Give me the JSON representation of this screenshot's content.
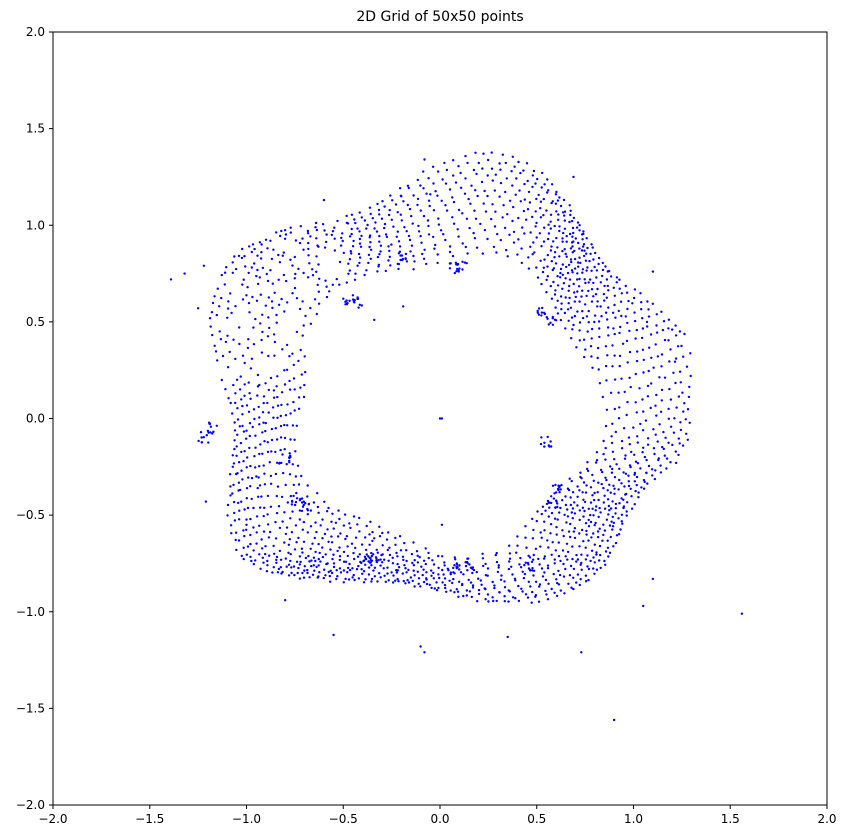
{
  "chart_data": {
    "type": "scatter",
    "title": "2D Grid of 50x50 points",
    "xlabel": "",
    "ylabel": "",
    "xlim": [
      -2.0,
      2.0
    ],
    "ylim": [
      -2.0,
      2.0
    ],
    "xticks": [
      -2.0,
      -1.5,
      -1.0,
      -0.5,
      0.0,
      0.5,
      1.0,
      1.5,
      2.0
    ],
    "yticks": [
      -2.0,
      -1.5,
      -1.0,
      -0.5,
      0.0,
      0.5,
      1.0,
      1.5,
      2.0
    ],
    "xtick_labels": [
      "−2.0",
      "−1.5",
      "−1.0",
      "−0.5",
      "0.0",
      "0.5",
      "1.0",
      "1.5",
      "2.0"
    ],
    "ytick_labels": [
      "−2.0",
      "−1.5",
      "−1.0",
      "−0.5",
      "0.0",
      "0.5",
      "1.0",
      "1.5",
      "2.0"
    ],
    "grid": false,
    "legend": "none",
    "marker_color": "#0000ff",
    "description_of_shape": "",
    "outliers": [
      [
        1.56,
        -1.01
      ],
      [
        0.9,
        -1.56
      ],
      [
        1.1,
        0.76
      ],
      [
        1.2,
        0.46
      ],
      [
        1.22,
        0.31
      ],
      [
        1.24,
        0.45
      ],
      [
        1.22,
        -0.23
      ],
      [
        1.07,
        0.5
      ],
      [
        1.1,
        -0.83
      ],
      [
        1.05,
        -0.97
      ],
      [
        -1.39,
        0.72
      ],
      [
        -1.32,
        0.75
      ],
      [
        -1.22,
        0.79
      ],
      [
        -1.25,
        0.57
      ],
      [
        -0.82,
        0.97
      ],
      [
        -0.6,
        1.13
      ],
      [
        -0.2,
        1.15
      ],
      [
        -0.08,
        1.34
      ],
      [
        -0.05,
        1.16
      ],
      [
        0.69,
        1.25
      ],
      [
        -1.21,
        -0.43
      ],
      [
        -1.0,
        -0.55
      ],
      [
        -0.98,
        -0.65
      ],
      [
        -0.8,
        -0.94
      ],
      [
        -0.55,
        -1.12
      ],
      [
        -0.1,
        -1.18
      ],
      [
        -0.08,
        -1.21
      ],
      [
        0.35,
        -1.13
      ],
      [
        0.73,
        -1.21
      ],
      [
        0.01,
        -0.55
      ],
      [
        -0.34,
        -0.62
      ],
      [
        0.0,
        0.0
      ],
      [
        0.01,
        0.0
      ],
      [
        -0.19,
        0.58
      ],
      [
        -0.34,
        0.51
      ]
    ],
    "clusters": [
      [
        -0.47,
        0.62
      ],
      [
        -0.42,
        0.6
      ],
      [
        -0.19,
        0.83
      ],
      [
        0.07,
        0.78
      ],
      [
        0.11,
        0.8
      ],
      [
        0.53,
        0.55
      ],
      [
        0.58,
        0.5
      ],
      [
        -1.22,
        -0.1
      ],
      [
        -1.18,
        -0.05
      ],
      [
        -0.74,
        -0.42
      ],
      [
        -0.7,
        -0.45
      ],
      [
        -0.38,
        -0.74
      ],
      [
        -0.33,
        -0.72
      ],
      [
        0.08,
        -0.78
      ],
      [
        0.14,
        -0.77
      ],
      [
        0.46,
        -0.76
      ],
      [
        0.58,
        -0.44
      ],
      [
        0.6,
        -0.36
      ],
      [
        0.55,
        -0.12
      ],
      [
        -0.8,
        -0.2
      ]
    ]
  }
}
